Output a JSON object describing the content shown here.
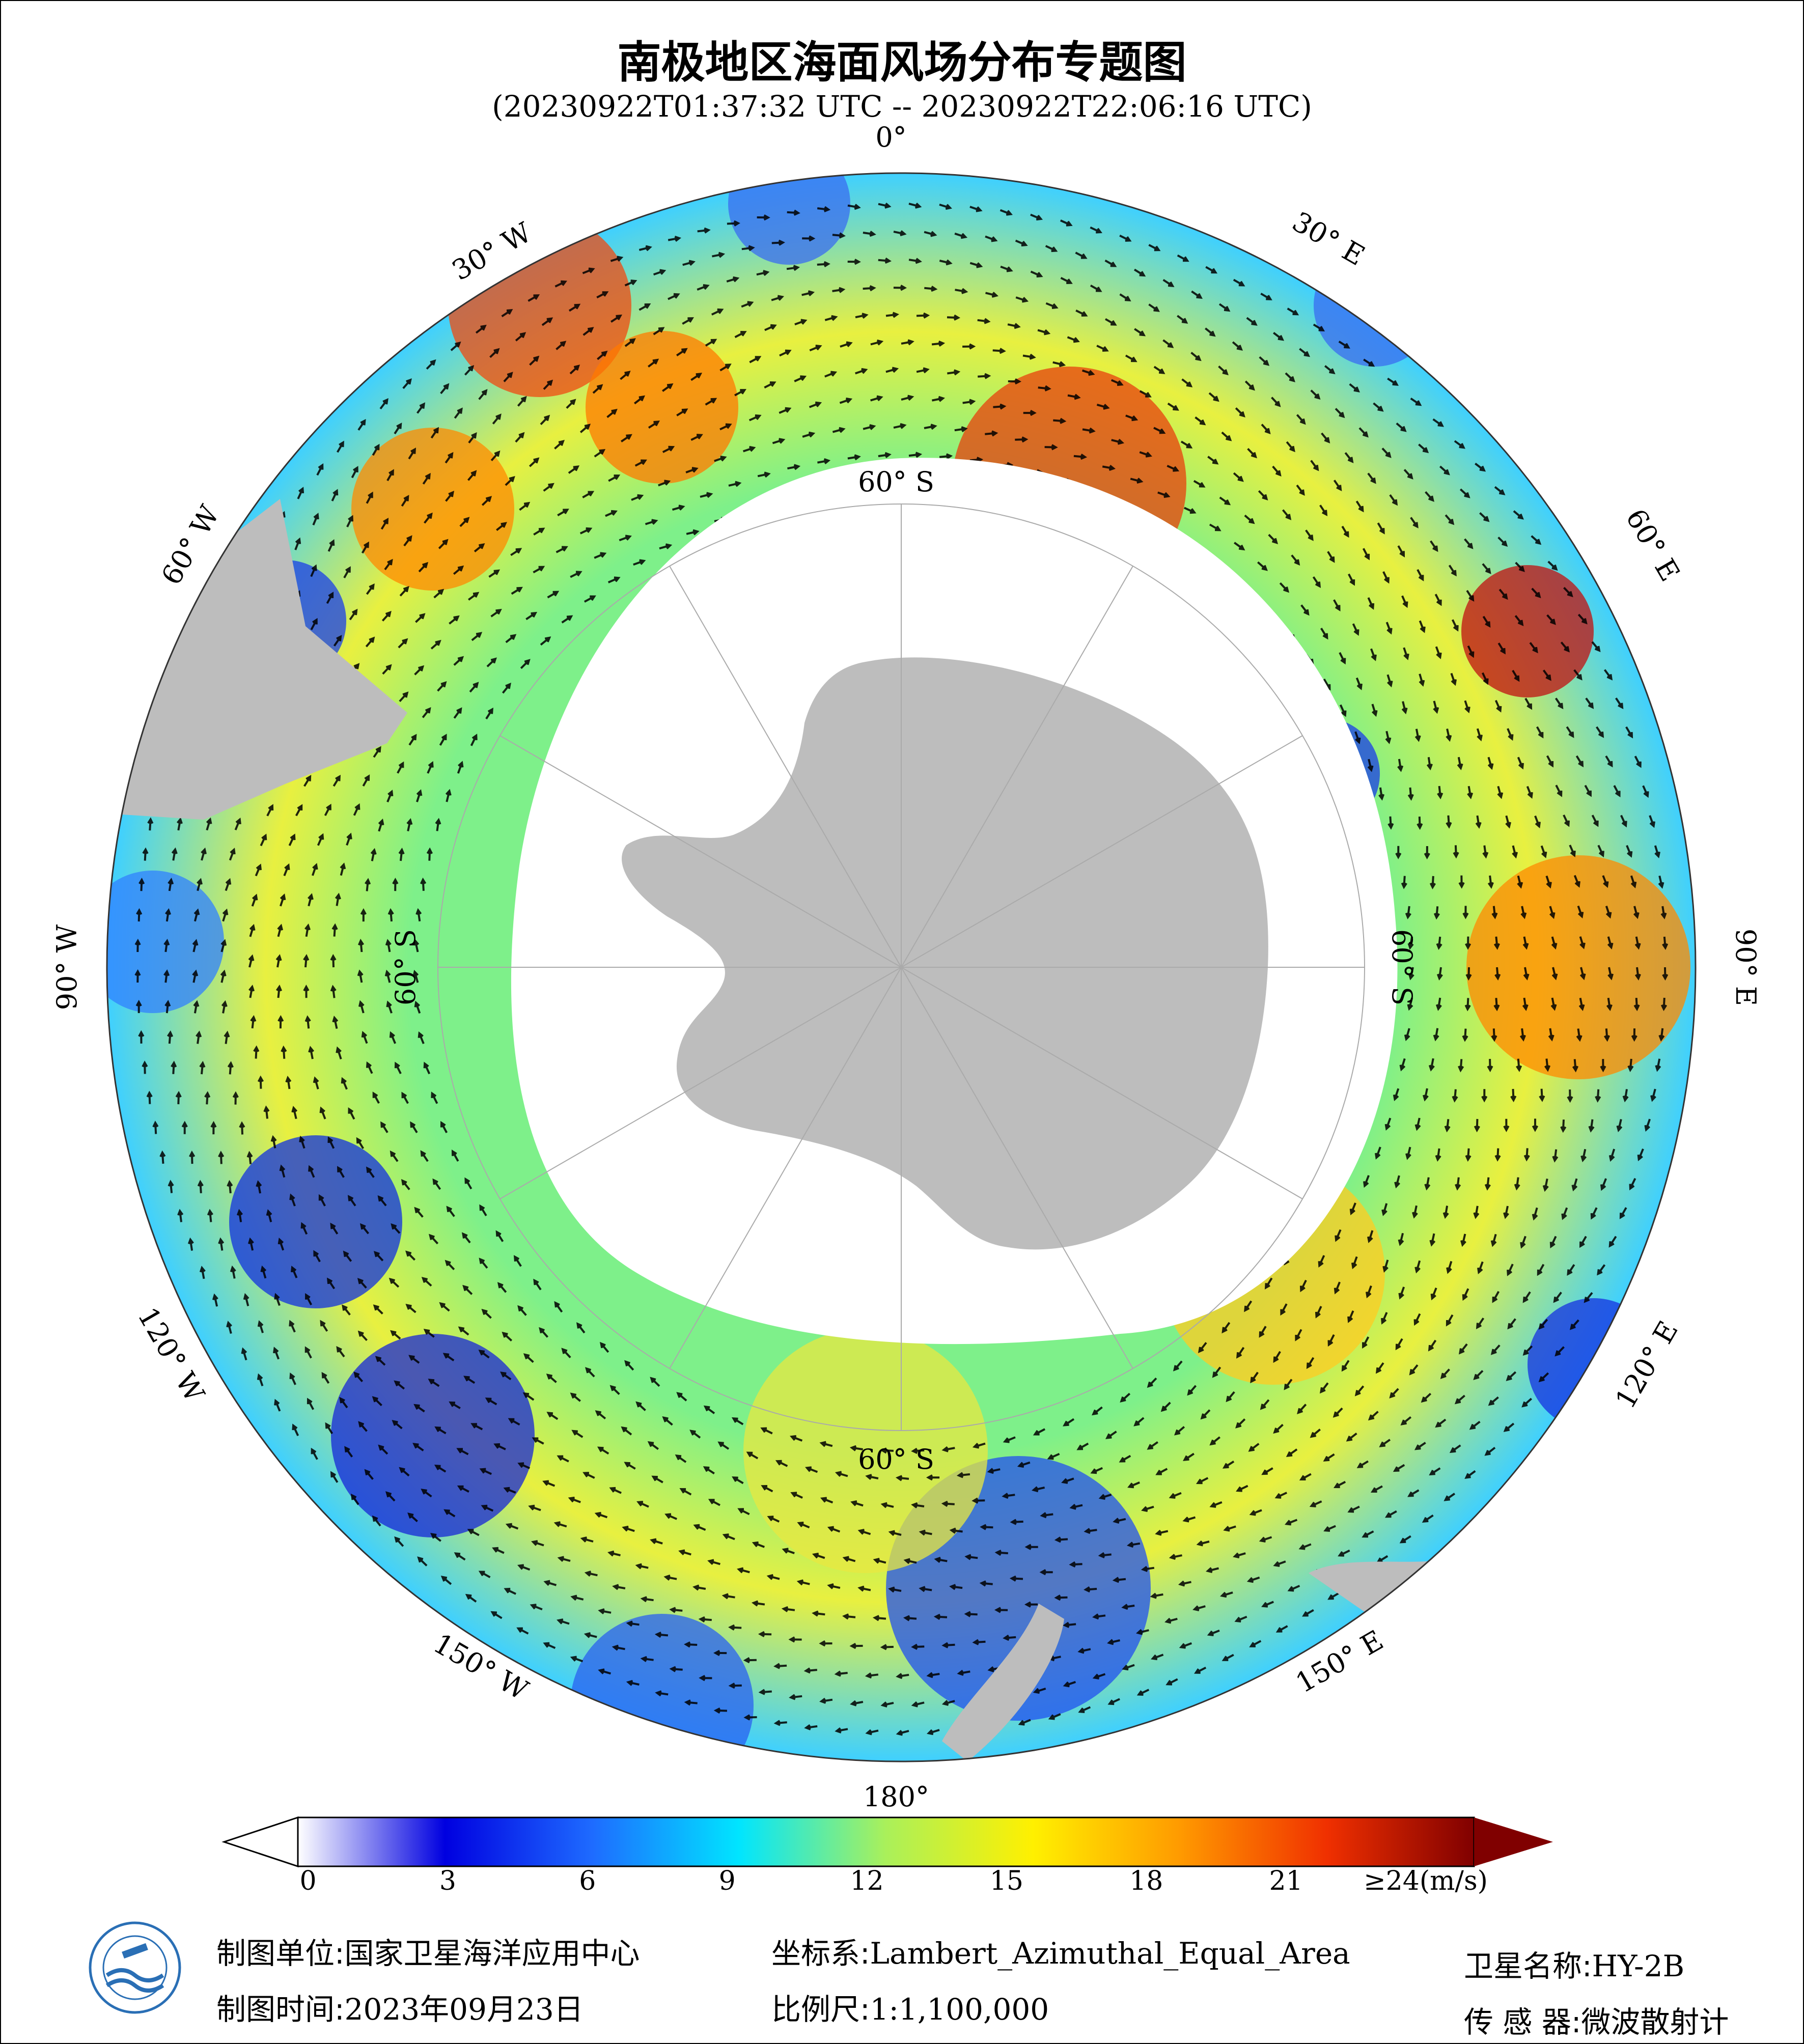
{
  "title": "南极地区海面风场分布专题图",
  "subtitle": "(20230922T01:37:32 UTC -- 20230922T22:06:16 UTC)",
  "map": {
    "projection_view": "south-polar",
    "longitude_labels": [
      "0°",
      "30° E",
      "60° E",
      "90° E",
      "120° E",
      "150° E",
      "180°",
      "150° W",
      "120° W",
      "90° W",
      "60° W",
      "30° W"
    ],
    "latitude_labels": [
      "60° S",
      "60° S",
      "60° S",
      "60° S"
    ],
    "land_color": "#bdbdbd",
    "no_data_color": "#ffffff"
  },
  "colorbar": {
    "unit": "(m/s)",
    "min": 0,
    "max": 24,
    "ticks": [
      "0",
      "3",
      "6",
      "9",
      "12",
      "15",
      "18",
      "21",
      "≥24(m/s)"
    ],
    "colors": [
      "#ffffff",
      "#0000e0",
      "#1e6bff",
      "#00e5ff",
      "#aaf05a",
      "#fff000",
      "#ff9a00",
      "#f03000",
      "#800000"
    ]
  },
  "footer": {
    "unit_label": "制图单位:",
    "unit_value": "国家卫星海洋应用中心",
    "time_label": "制图时间:",
    "time_value": "2023年09月23日",
    "crs_label": "坐标系:",
    "crs_value": "Lambert_Azimuthal_Equal_Area",
    "scale_label": "比例尺:",
    "scale_value": "1:1,100,000",
    "satellite_label": "卫星名称:",
    "satellite_value": "HY-2B",
    "sensor_label": "传 感 器:",
    "sensor_value": "微波散射计"
  }
}
